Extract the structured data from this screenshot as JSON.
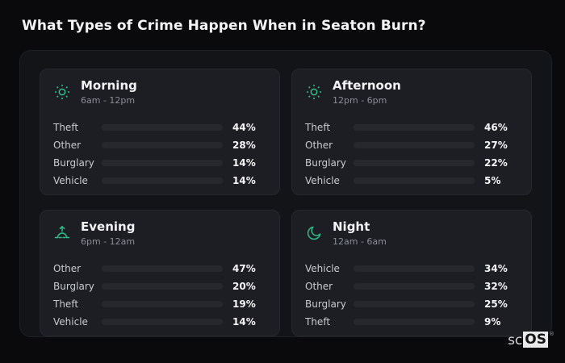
{
  "header": {
    "title": "What Types of Crime Happen When in Seaton Burn?"
  },
  "colors": {
    "theft": "#a855f7",
    "other": "#64748b",
    "burglary": "#e8731a",
    "vehicle": "#3b82f6",
    "icon": "#2fc08b"
  },
  "logo": {
    "prefix": "sc",
    "box": "OS",
    "reg": "®"
  },
  "panels": [
    {
      "title": "Morning",
      "time": "6am - 12pm",
      "icon": "sun-icon",
      "rows": [
        {
          "label": "Theft",
          "value": "44%",
          "pct": 44,
          "type": "theft"
        },
        {
          "label": "Other",
          "value": "28%",
          "pct": 28,
          "type": "other"
        },
        {
          "label": "Burglary",
          "value": "14%",
          "pct": 14,
          "type": "burglary"
        },
        {
          "label": "Vehicle",
          "value": "14%",
          "pct": 14,
          "type": "vehicle"
        }
      ]
    },
    {
      "title": "Afternoon",
      "time": "12pm - 6pm",
      "icon": "sun-icon",
      "rows": [
        {
          "label": "Theft",
          "value": "46%",
          "pct": 46,
          "type": "theft"
        },
        {
          "label": "Other",
          "value": "27%",
          "pct": 27,
          "type": "other"
        },
        {
          "label": "Burglary",
          "value": "22%",
          "pct": 22,
          "type": "burglary"
        },
        {
          "label": "Vehicle",
          "value": "5%",
          "pct": 5,
          "type": "vehicle"
        }
      ]
    },
    {
      "title": "Evening",
      "time": "6pm - 12am",
      "icon": "sunrise-icon",
      "rows": [
        {
          "label": "Other",
          "value": "47%",
          "pct": 47,
          "type": "other"
        },
        {
          "label": "Burglary",
          "value": "20%",
          "pct": 20,
          "type": "burglary"
        },
        {
          "label": "Theft",
          "value": "19%",
          "pct": 19,
          "type": "theft"
        },
        {
          "label": "Vehicle",
          "value": "14%",
          "pct": 14,
          "type": "vehicle"
        }
      ]
    },
    {
      "title": "Night",
      "time": "12am - 6am",
      "icon": "moon-icon",
      "rows": [
        {
          "label": "Vehicle",
          "value": "34%",
          "pct": 34,
          "type": "vehicle"
        },
        {
          "label": "Other",
          "value": "32%",
          "pct": 32,
          "type": "other"
        },
        {
          "label": "Burglary",
          "value": "25%",
          "pct": 25,
          "type": "burglary"
        },
        {
          "label": "Theft",
          "value": "9%",
          "pct": 9,
          "type": "theft"
        }
      ]
    }
  ],
  "chart_data": [
    {
      "type": "bar",
      "orientation": "horizontal",
      "title": "Morning",
      "subtitle": "6am - 12pm",
      "categories": [
        "Theft",
        "Other",
        "Burglary",
        "Vehicle"
      ],
      "values": [
        44,
        28,
        14,
        14
      ],
      "unit": "%",
      "xlim": [
        0,
        100
      ],
      "bar_colors": [
        "#a855f7",
        "#64748b",
        "#e8731a",
        "#3b82f6"
      ],
      "grid": false,
      "legend": false
    },
    {
      "type": "bar",
      "orientation": "horizontal",
      "title": "Afternoon",
      "subtitle": "12pm - 6pm",
      "categories": [
        "Theft",
        "Other",
        "Burglary",
        "Vehicle"
      ],
      "values": [
        46,
        27,
        22,
        5
      ],
      "unit": "%",
      "xlim": [
        0,
        100
      ],
      "bar_colors": [
        "#a855f7",
        "#64748b",
        "#e8731a",
        "#3b82f6"
      ],
      "grid": false,
      "legend": false
    },
    {
      "type": "bar",
      "orientation": "horizontal",
      "title": "Evening",
      "subtitle": "6pm - 12am",
      "categories": [
        "Other",
        "Burglary",
        "Theft",
        "Vehicle"
      ],
      "values": [
        47,
        20,
        19,
        14
      ],
      "unit": "%",
      "xlim": [
        0,
        100
      ],
      "bar_colors": [
        "#64748b",
        "#e8731a",
        "#a855f7",
        "#3b82f6"
      ],
      "grid": false,
      "legend": false
    },
    {
      "type": "bar",
      "orientation": "horizontal",
      "title": "Night",
      "subtitle": "12am - 6am",
      "categories": [
        "Vehicle",
        "Other",
        "Burglary",
        "Theft"
      ],
      "values": [
        34,
        32,
        25,
        9
      ],
      "unit": "%",
      "xlim": [
        0,
        100
      ],
      "bar_colors": [
        "#3b82f6",
        "#64748b",
        "#e8731a",
        "#a855f7"
      ],
      "grid": false,
      "legend": false
    }
  ]
}
